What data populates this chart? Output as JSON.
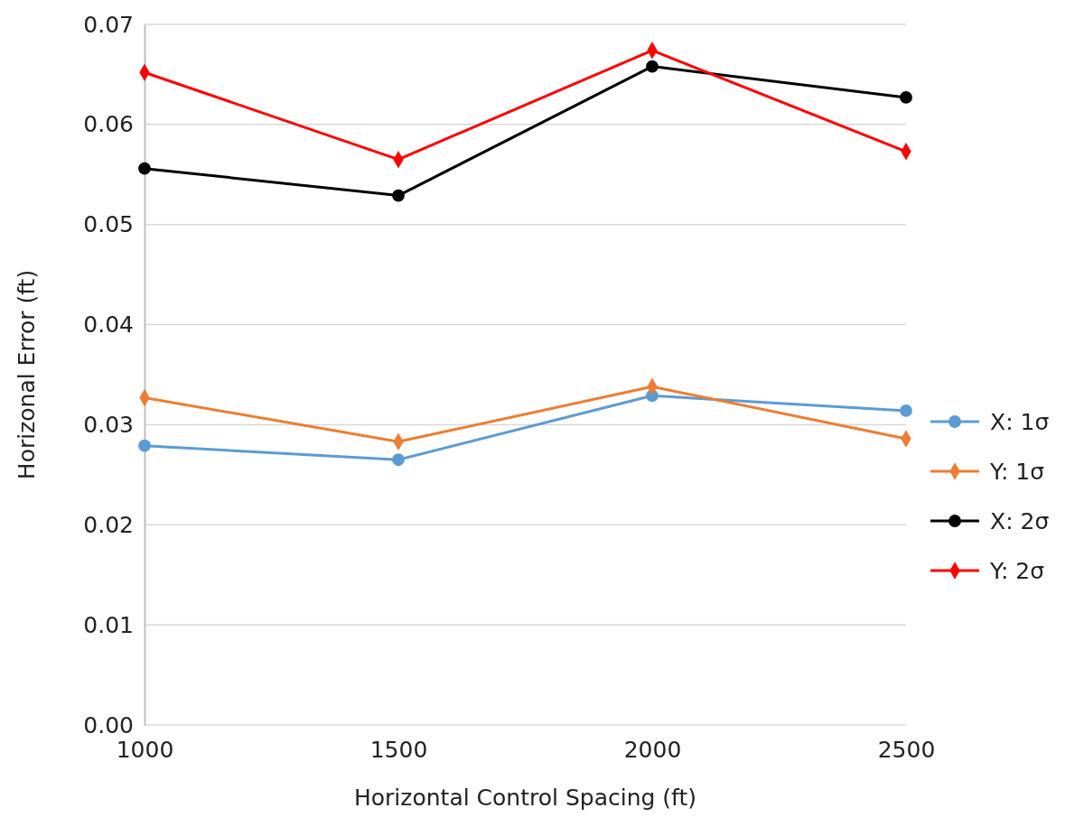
{
  "chart_data": {
    "type": "line",
    "xlabel": "Horizontal Control Spacing (ft)",
    "ylabel": "Horizonal Error (ft)",
    "x": [
      1000,
      1500,
      2000,
      2500
    ],
    "xlim": [
      1000,
      2500
    ],
    "xticks": [
      1000,
      1500,
      2000,
      2500
    ],
    "ylim": [
      0,
      0.07
    ],
    "yticks": [
      {
        "value": 0,
        "label": "0.00"
      },
      {
        "value": 0.01,
        "label": "0.01"
      },
      {
        "value": 0.02,
        "label": "0.02"
      },
      {
        "value": 0.03,
        "label": "0.03"
      },
      {
        "value": 0.04,
        "label": "0.04"
      },
      {
        "value": 0.05,
        "label": "0.05"
      },
      {
        "value": 0.06,
        "label": "0.06"
      },
      {
        "value": 0.07,
        "label": "0.07"
      }
    ],
    "grid": "y",
    "legend": "right",
    "line_style": "solid",
    "series": [
      {
        "name": "X: 1σ",
        "color": "#5b9bd5",
        "marker": "circle",
        "values": [
          0.0279,
          0.0265,
          0.0329,
          0.0314
        ]
      },
      {
        "name": "Y: 1σ",
        "color": "#ed7d31",
        "marker": "diamond",
        "values": [
          0.0327,
          0.0283,
          0.0338,
          0.0286
        ]
      },
      {
        "name": "X: 2σ",
        "color": "#000000",
        "marker": "circle",
        "values": [
          0.0556,
          0.0529,
          0.0658,
          0.0627
        ]
      },
      {
        "name": "Y: 2σ",
        "color": "#ff0000",
        "marker": "diamond",
        "values": [
          0.0652,
          0.0565,
          0.0674,
          0.0573
        ]
      }
    ]
  }
}
